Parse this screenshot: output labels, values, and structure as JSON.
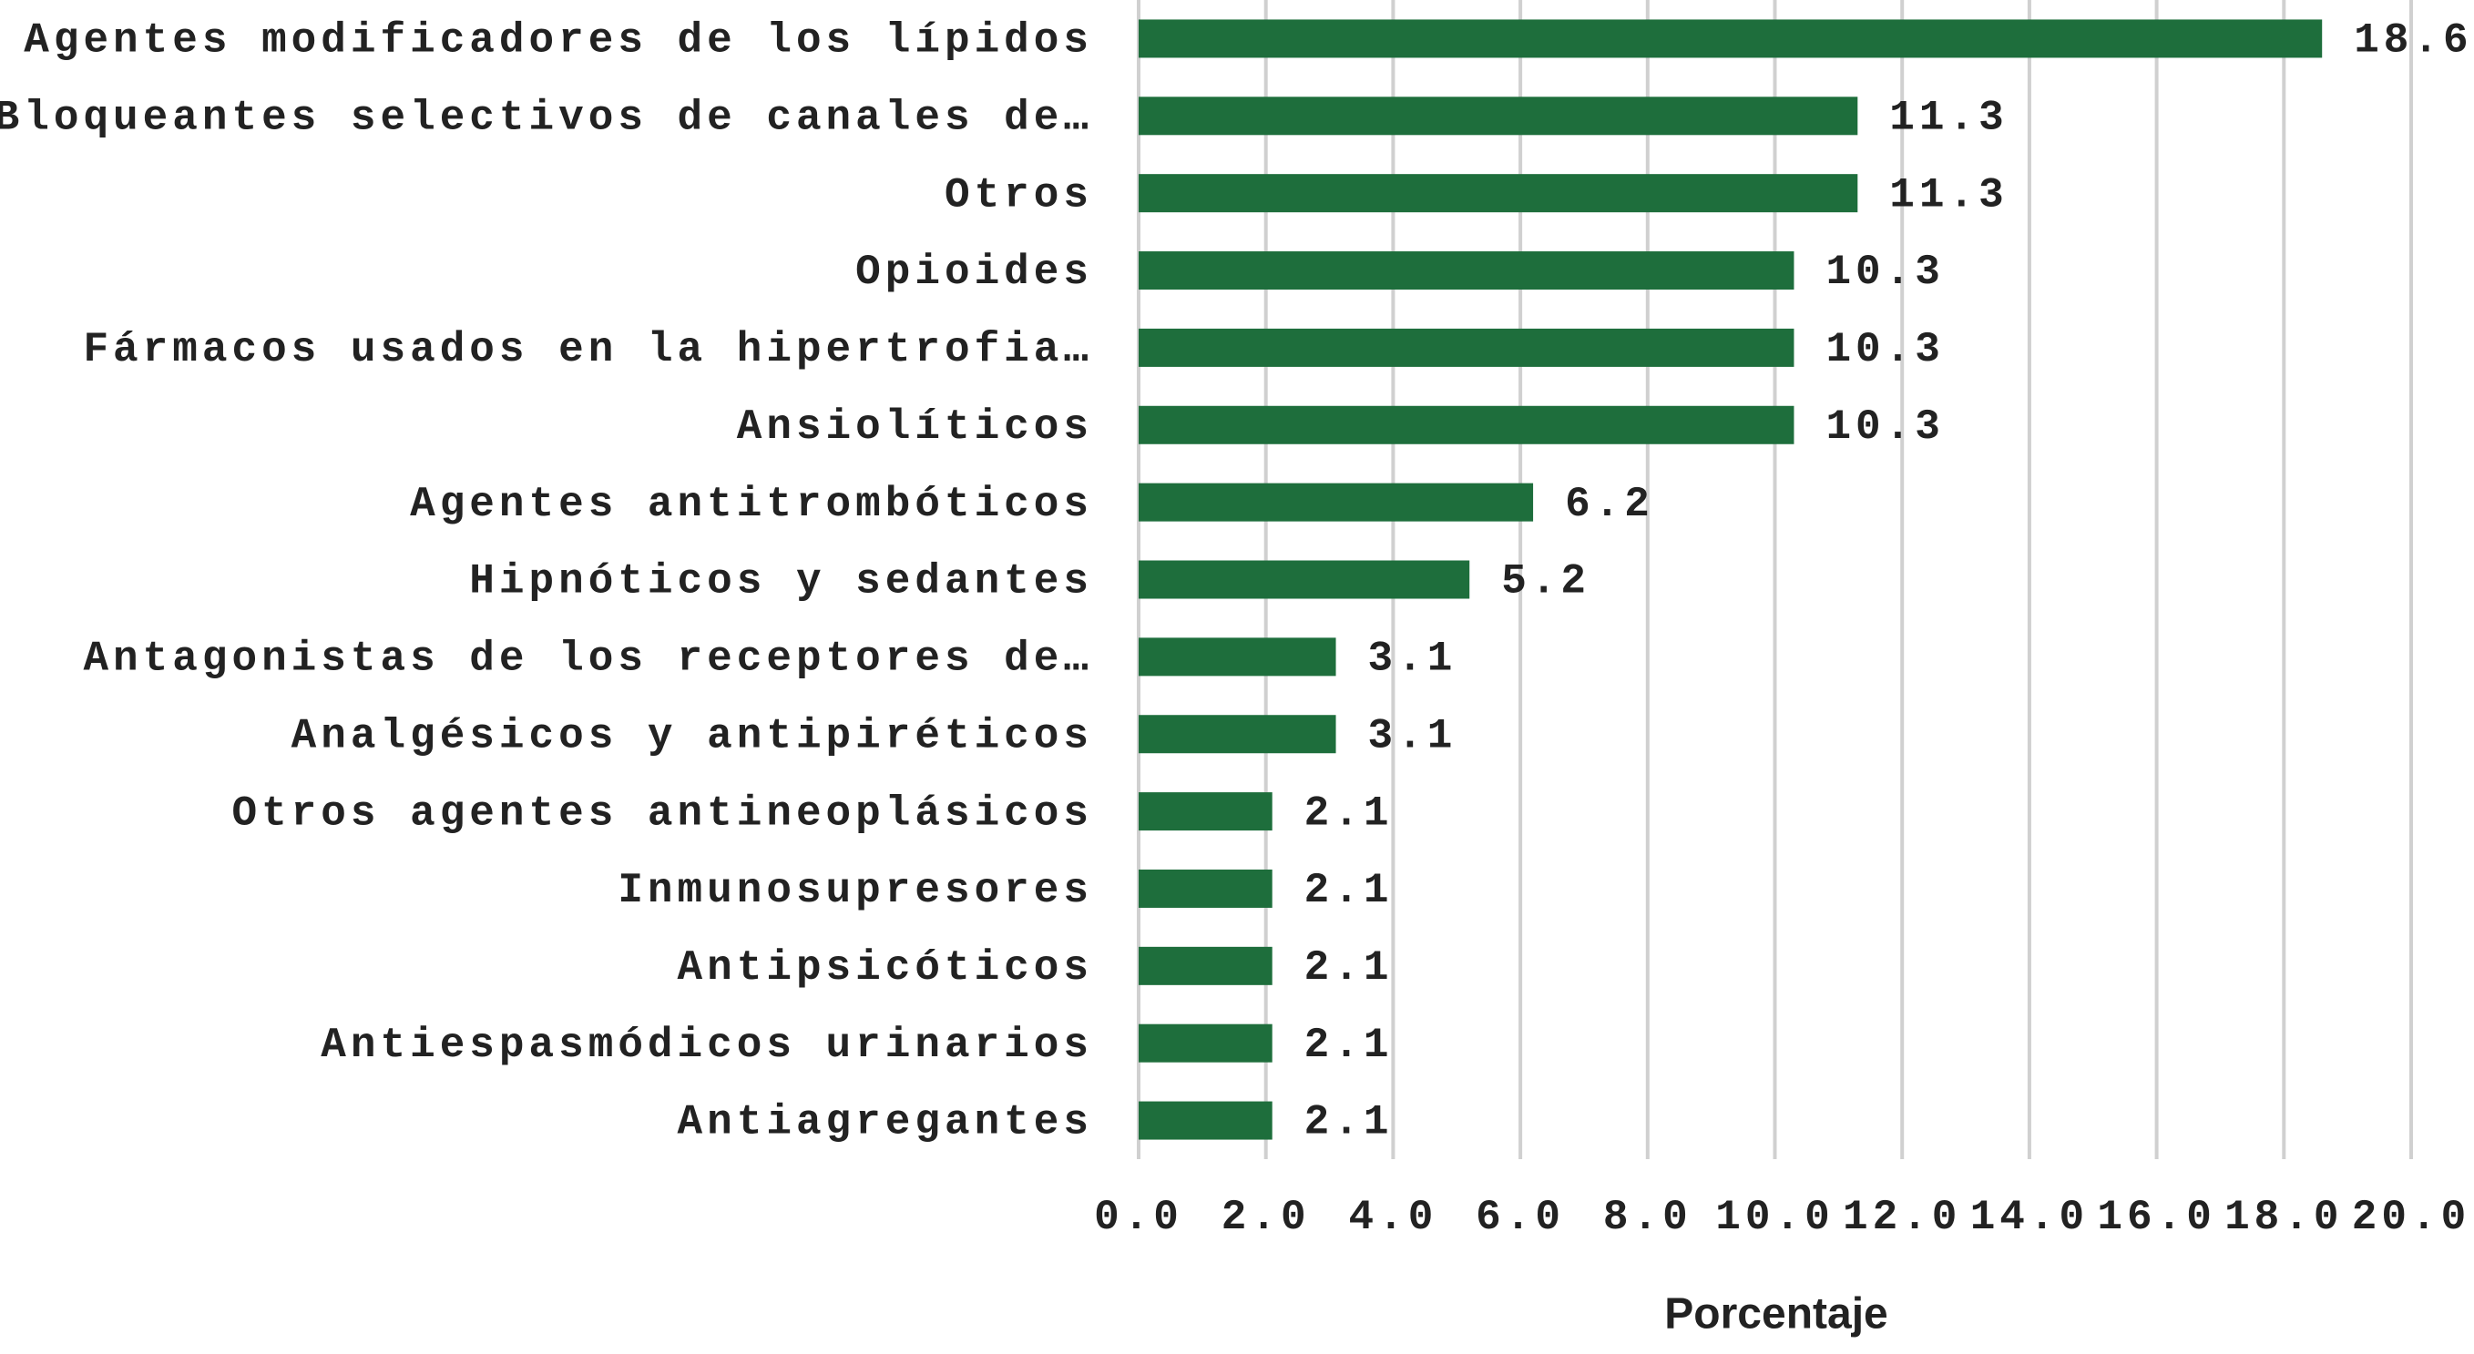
{
  "chart_data": {
    "type": "barh",
    "x_label": "Porcentaje",
    "categories": [
      "Agentes modificadores de los lípidos",
      "Bloqueantes selectivos de canales de…",
      "Otros",
      "Opioides",
      "Fármacos usados en la hipertrofia…",
      "Ansiolíticos",
      "Agentes antitrombóticos",
      "Hipnóticos y sedantes",
      "Antagonistas de los receptores de…",
      "Analgésicos y antipiréticos",
      "Otros agentes antineoplásicos",
      "Inmunosupresores",
      "Antipsicóticos",
      "Antiespasmódicos urinarios",
      "Antiagregantes"
    ],
    "values": [
      18.6,
      11.3,
      11.3,
      10.3,
      10.3,
      10.3,
      6.2,
      5.2,
      3.1,
      3.1,
      2.1,
      2.1,
      2.1,
      2.1,
      2.1
    ],
    "color": "#1e6e3c",
    "xlim": [
      0,
      20
    ],
    "xticks": [
      {
        "value": 0,
        "label": "0.0"
      },
      {
        "value": 2,
        "label": "2.0"
      },
      {
        "value": 4,
        "label": "4.0"
      },
      {
        "value": 6,
        "label": "6.0"
      },
      {
        "value": 8,
        "label": "8.0"
      },
      {
        "value": 10,
        "label": "10.0"
      },
      {
        "value": 12,
        "label": "12.0"
      },
      {
        "value": 14,
        "label": "14.0"
      },
      {
        "value": 16,
        "label": "16.0"
      },
      {
        "value": 18,
        "label": "18.0"
      },
      {
        "value": 20,
        "label": "20.0"
      }
    ],
    "grid": true
  }
}
